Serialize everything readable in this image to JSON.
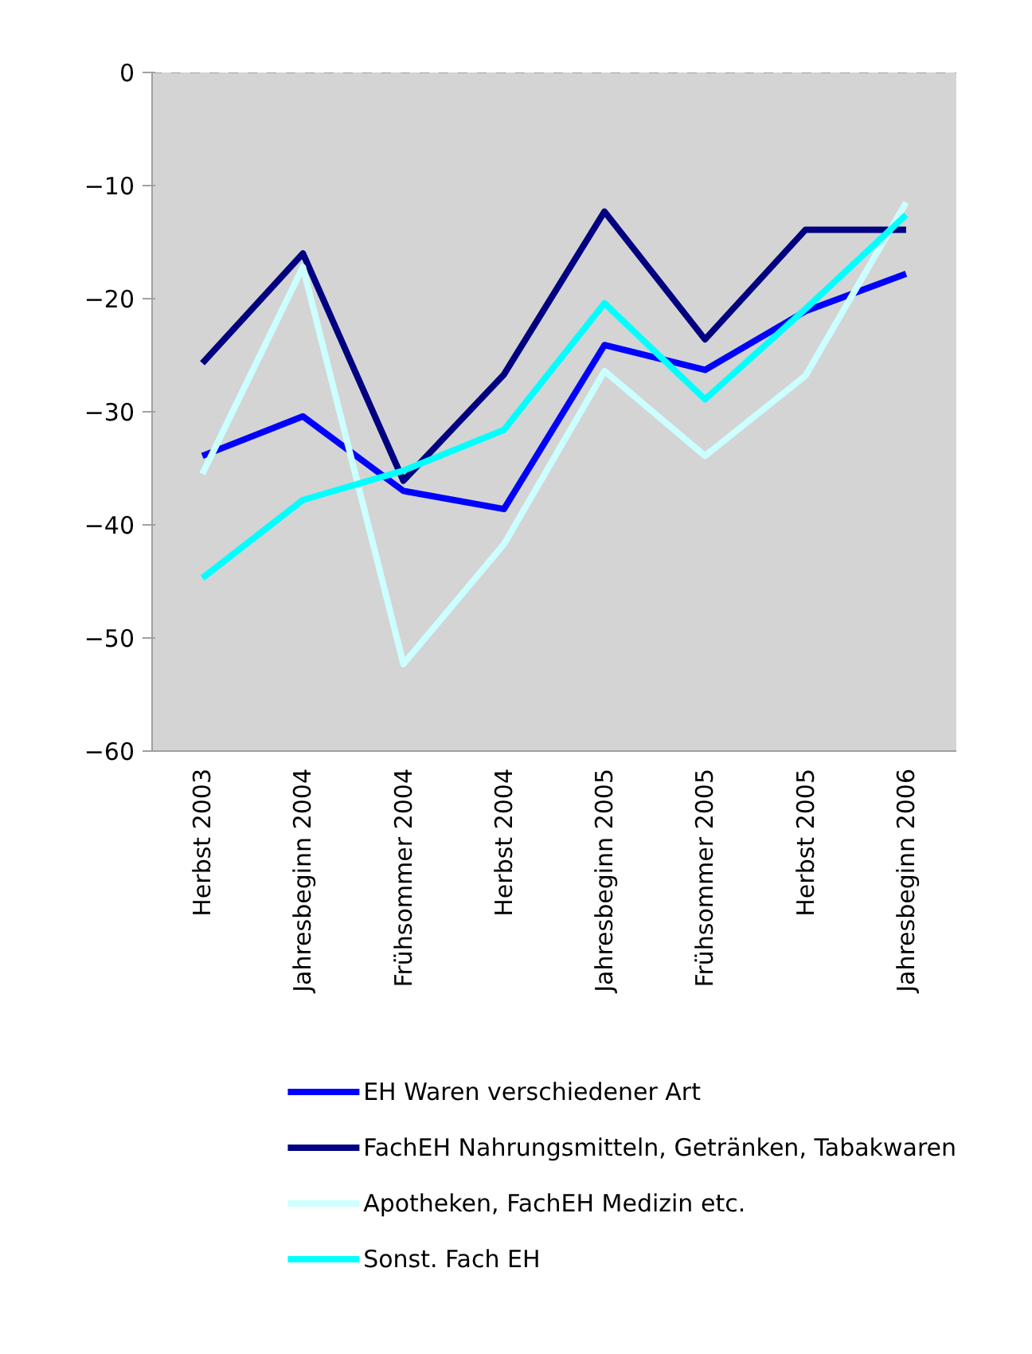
{
  "chart_data": {
    "type": "line",
    "categories": [
      "Herbst 2003",
      "Jahresbeginn 2004",
      "Frühsommer 2004",
      "Herbst 2004",
      "Jahresbeginn 2005",
      "Frühsommer 2005",
      "Herbst 2005",
      "Jahresbeginn 2006"
    ],
    "series": [
      {
        "name": "EH Waren verschiedener Art",
        "color": "#0000ff",
        "values": [
          -33.9,
          -30.4,
          -37.0,
          -38.6,
          -24.1,
          -26.3,
          -21.1,
          -17.8
        ]
      },
      {
        "name": "FachEH Nahrungsmitteln, Getränken, Tabakwaren",
        "color": "#000080",
        "values": [
          -25.7,
          -16.0,
          -36.1,
          -26.7,
          -12.3,
          -23.6,
          -13.9,
          -13.9
        ]
      },
      {
        "name": "Apotheken, FachEH Medizin etc.",
        "color": "#ccffff",
        "values": [
          -35.5,
          -17.2,
          -52.3,
          -41.7,
          -26.4,
          -33.9,
          -26.8,
          -11.5
        ]
      },
      {
        "name": "Sonst. Fach EH",
        "color": "#00ffff",
        "values": [
          -44.7,
          -37.8,
          -35.2,
          -31.6,
          -20.4,
          -28.9,
          -20.9,
          -12.6
        ]
      }
    ],
    "ylim": [
      -60,
      0
    ],
    "yticks": [
      -60,
      -50,
      -40,
      -30,
      -20,
      -10,
      0
    ],
    "ref_lines": [
      {
        "axis": "y",
        "value": 0,
        "color": "#a0a0a0",
        "line_style": "dashed"
      }
    ],
    "grid": false,
    "legend": "bottom",
    "marker": "none",
    "line_style": "solid"
  }
}
